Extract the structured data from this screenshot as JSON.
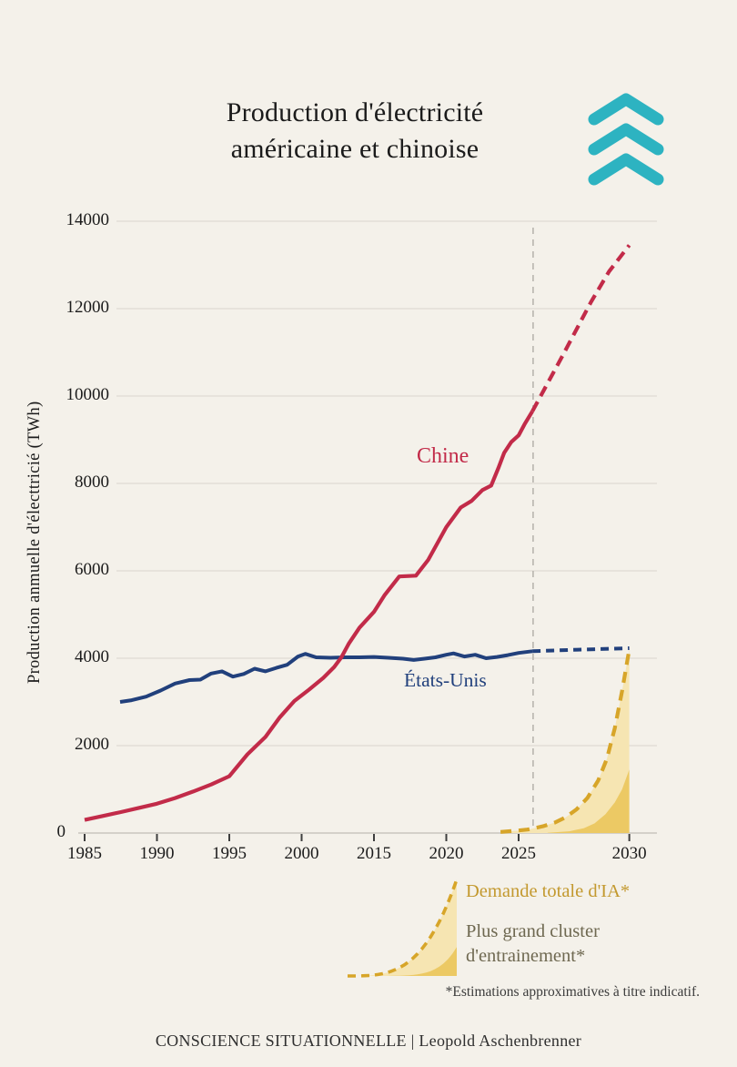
{
  "page": {
    "title_line1": "Production d'électricité",
    "title_line2": "américaine et chinoise",
    "attribution": "CONSCIENCE SITUATIONNELLE | Leopold Aschenbrenner"
  },
  "logo": {
    "name": "triple-chevron-up"
  },
  "colors": {
    "background": "#f4f1ea",
    "title_text": "#1b1b1b",
    "logo_teal": "#2db3c1",
    "china_red": "#c22b49",
    "us_navy": "#21407c",
    "gold_line": "#d7a529",
    "gold_fill_light": "#f6e5b2",
    "gold_fill_dark": "#ecc964",
    "grid": "#dfdbd3",
    "axis_line": "#c9c6be",
    "tick_mark": "#3e3e3e",
    "divider": "#b8b5ae",
    "legend_demand_text": "#c3992f",
    "legend_cluster_text": "#6e6850",
    "footnote_text": "#3b3b3b",
    "attribution_text": "#2f2f2f"
  },
  "chart_data": {
    "type": "line",
    "title": "Production d'électricité américaine et chinoise",
    "ylabel": "Production anmuelle d'électtricié (TWh)",
    "ylim": [
      0,
      14000
    ],
    "yticks": [
      0,
      2000,
      4000,
      6000,
      8000,
      10000,
      12000,
      14000
    ],
    "xticks": [
      {
        "u": 0,
        "label": "1985"
      },
      {
        "u": 1,
        "label": "1990"
      },
      {
        "u": 2,
        "label": "1995"
      },
      {
        "u": 3,
        "label": "2000"
      },
      {
        "u": 4,
        "label": "2015"
      },
      {
        "u": 5,
        "label": "2020"
      },
      {
        "u": 6,
        "label": "2025"
      },
      {
        "u": 7.53,
        "label": "2030"
      }
    ],
    "grid": "horizontal",
    "legend_position": "bottom-right",
    "forecast_divider_u": 6.2,
    "series_labels": {
      "china": "Chine",
      "us": "États-Unis"
    },
    "legend": {
      "demand_label": "Demande totale d'IA*",
      "cluster_label_line1": "Plus grand cluster",
      "cluster_label_line2": "d'entrainement*",
      "footnote": "*Estimations approximatives à titre indicatif."
    },
    "series": [
      {
        "id": "ai-demand",
        "name": "Demande totale d'IA*",
        "style": "dashed",
        "color": "gold_line",
        "fill": "gold_fill_light",
        "points": [
          [
            5.75,
            25
          ],
          [
            5.95,
            50
          ],
          [
            6.12,
            80
          ],
          [
            6.19,
            100
          ],
          [
            6.35,
            160
          ],
          [
            6.5,
            240
          ],
          [
            6.65,
            360
          ],
          [
            6.8,
            540
          ],
          [
            6.95,
            800
          ],
          [
            7.1,
            1200
          ],
          [
            7.22,
            1700
          ],
          [
            7.33,
            2400
          ],
          [
            7.43,
            3250
          ],
          [
            7.53,
            4200
          ]
        ]
      },
      {
        "id": "largest-cluster",
        "name": "Plus grand cluster d'entrainement*",
        "style": "area",
        "color": "gold_fill_dark",
        "fill": "gold_fill_dark",
        "points": [
          [
            6.4,
            5
          ],
          [
            6.7,
            40
          ],
          [
            6.9,
            110
          ],
          [
            7.05,
            220
          ],
          [
            7.2,
            430
          ],
          [
            7.33,
            700
          ],
          [
            7.43,
            1000
          ],
          [
            7.53,
            1450
          ]
        ]
      },
      {
        "id": "us-solid",
        "name": "États-Unis",
        "style": "solid",
        "color": "us_navy",
        "points": [
          [
            0.49,
            3000
          ],
          [
            0.65,
            3040
          ],
          [
            0.85,
            3120
          ],
          [
            1.05,
            3260
          ],
          [
            1.25,
            3420
          ],
          [
            1.45,
            3500
          ],
          [
            1.6,
            3510
          ],
          [
            1.75,
            3650
          ],
          [
            1.9,
            3700
          ],
          [
            2.05,
            3580
          ],
          [
            2.2,
            3640
          ],
          [
            2.35,
            3760
          ],
          [
            2.5,
            3700
          ],
          [
            2.65,
            3780
          ],
          [
            2.8,
            3850
          ],
          [
            2.95,
            4040
          ],
          [
            3.05,
            4100
          ],
          [
            3.2,
            4020
          ],
          [
            3.4,
            4010
          ],
          [
            3.6,
            4020
          ],
          [
            3.8,
            4020
          ],
          [
            4,
            4030
          ],
          [
            4.2,
            4010
          ],
          [
            4.4,
            3990
          ],
          [
            4.55,
            3960
          ],
          [
            4.7,
            3990
          ],
          [
            4.85,
            4020
          ],
          [
            5,
            4080
          ],
          [
            5.1,
            4110
          ],
          [
            5.25,
            4040
          ],
          [
            5.4,
            4080
          ],
          [
            5.55,
            4000
          ],
          [
            5.7,
            4030
          ],
          [
            5.85,
            4070
          ],
          [
            6,
            4120
          ],
          [
            6.19,
            4160
          ]
        ]
      },
      {
        "id": "us-projection",
        "name": "États-Unis (projection)",
        "style": "dashed",
        "color": "us_navy",
        "points": [
          [
            6.19,
            4160
          ],
          [
            6.7,
            4190
          ],
          [
            7.53,
            4230
          ]
        ]
      },
      {
        "id": "china-solid",
        "name": "Chine",
        "style": "solid",
        "color": "china_red",
        "points": [
          [
            0,
            300
          ],
          [
            0.25,
            390
          ],
          [
            0.5,
            480
          ],
          [
            0.75,
            575
          ],
          [
            1,
            670
          ],
          [
            1.25,
            800
          ],
          [
            1.5,
            950
          ],
          [
            1.75,
            1110
          ],
          [
            2,
            1300
          ],
          [
            2.25,
            1800
          ],
          [
            2.5,
            2200
          ],
          [
            2.7,
            2650
          ],
          [
            2.9,
            3020
          ],
          [
            3.1,
            3280
          ],
          [
            3.3,
            3550
          ],
          [
            3.45,
            3800
          ],
          [
            3.55,
            4020
          ],
          [
            3.65,
            4330
          ],
          [
            3.8,
            4700
          ],
          [
            4,
            5060
          ],
          [
            4.15,
            5450
          ],
          [
            4.35,
            5870
          ],
          [
            4.58,
            5890
          ],
          [
            4.75,
            6250
          ],
          [
            5,
            7000
          ],
          [
            5.2,
            7450
          ],
          [
            5.35,
            7600
          ],
          [
            5.5,
            7850
          ],
          [
            5.62,
            7950
          ],
          [
            5.72,
            8350
          ],
          [
            5.8,
            8700
          ],
          [
            5.9,
            8950
          ],
          [
            6,
            9100
          ],
          [
            6.08,
            9350
          ],
          [
            6.19,
            9650
          ]
        ]
      },
      {
        "id": "china-projection",
        "name": "Chine (projection)",
        "style": "dashed",
        "color": "china_red",
        "points": [
          [
            6.19,
            9650
          ],
          [
            6.6,
            10900
          ],
          [
            7,
            12150
          ],
          [
            7.25,
            12850
          ],
          [
            7.53,
            13450
          ]
        ]
      }
    ]
  }
}
